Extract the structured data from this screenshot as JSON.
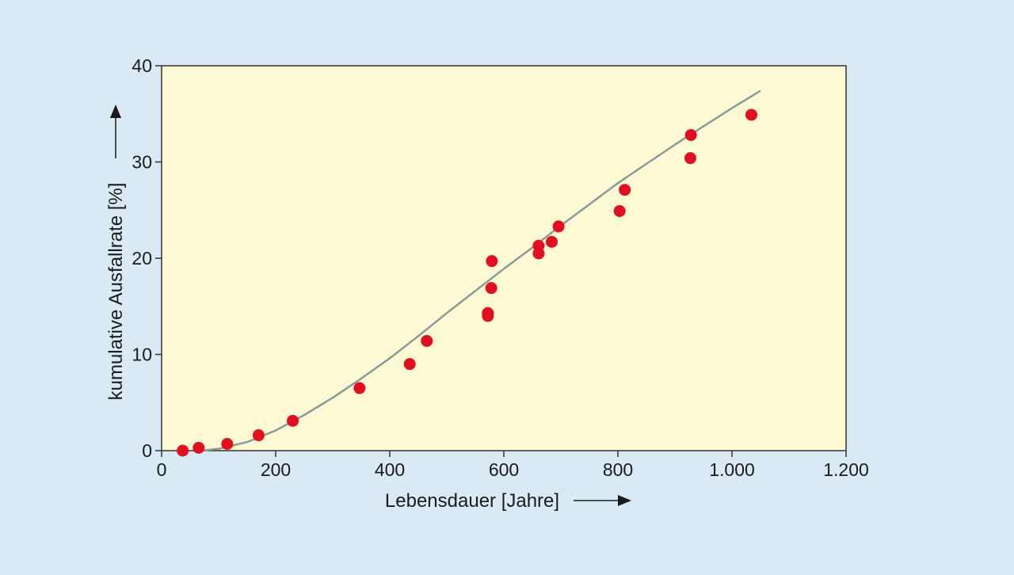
{
  "chart_data": {
    "type": "scatter",
    "xlabel": "Lebensdauer [Jahre]",
    "ylabel": "kumulative Ausfallrate [%]",
    "xlim": [
      0,
      1200
    ],
    "ylim": [
      0,
      40
    ],
    "x_ticks": [
      0,
      200,
      400,
      600,
      800,
      1000,
      1200
    ],
    "x_tick_labels": [
      "0",
      "200",
      "400",
      "600",
      "800",
      "1.000",
      "1.200"
    ],
    "y_ticks": [
      0,
      10,
      20,
      30,
      40
    ],
    "y_tick_labels": [
      "0",
      "10",
      "20",
      "30",
      "40"
    ],
    "grid": false,
    "colors": {
      "background": "#d9eaf5",
      "plot_area": "#fdf9d2",
      "points": "#e01020",
      "curve": "#8a9a9a",
      "axis": "#333333"
    },
    "points": [
      {
        "x": 37,
        "y": 0.0
      },
      {
        "x": 65,
        "y": 0.3
      },
      {
        "x": 115,
        "y": 0.7
      },
      {
        "x": 170,
        "y": 1.6
      },
      {
        "x": 230,
        "y": 3.1
      },
      {
        "x": 347,
        "y": 6.5
      },
      {
        "x": 435,
        "y": 9.0
      },
      {
        "x": 465,
        "y": 11.4
      },
      {
        "x": 572,
        "y": 14.0
      },
      {
        "x": 572,
        "y": 14.3
      },
      {
        "x": 578,
        "y": 16.9
      },
      {
        "x": 579,
        "y": 19.7
      },
      {
        "x": 661,
        "y": 20.5
      },
      {
        "x": 661,
        "y": 21.3
      },
      {
        "x": 684,
        "y": 21.7
      },
      {
        "x": 696,
        "y": 23.3
      },
      {
        "x": 803,
        "y": 24.9
      },
      {
        "x": 812,
        "y": 27.1
      },
      {
        "x": 927,
        "y": 30.4
      },
      {
        "x": 928,
        "y": 32.8
      },
      {
        "x": 1034,
        "y": 34.9
      }
    ],
    "fit_curve": [
      {
        "x": 70,
        "y": 0.0
      },
      {
        "x": 100,
        "y": 0.2
      },
      {
        "x": 150,
        "y": 0.9
      },
      {
        "x": 200,
        "y": 2.1
      },
      {
        "x": 250,
        "y": 3.7
      },
      {
        "x": 300,
        "y": 5.5
      },
      {
        "x": 350,
        "y": 7.5
      },
      {
        "x": 400,
        "y": 9.6
      },
      {
        "x": 450,
        "y": 11.9
      },
      {
        "x": 500,
        "y": 14.3
      },
      {
        "x": 550,
        "y": 16.6
      },
      {
        "x": 600,
        "y": 18.9
      },
      {
        "x": 650,
        "y": 21.1
      },
      {
        "x": 700,
        "y": 23.4
      },
      {
        "x": 750,
        "y": 25.6
      },
      {
        "x": 800,
        "y": 27.8
      },
      {
        "x": 850,
        "y": 29.8
      },
      {
        "x": 900,
        "y": 31.8
      },
      {
        "x": 950,
        "y": 33.7
      },
      {
        "x": 1000,
        "y": 35.6
      },
      {
        "x": 1050,
        "y": 37.4
      }
    ]
  }
}
